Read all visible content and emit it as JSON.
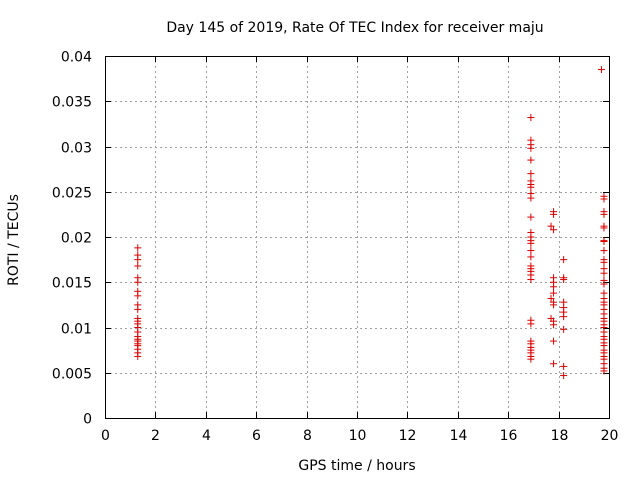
{
  "chart_data": {
    "type": "scatter",
    "title": "Day 145 of 2019, Rate Of TEC Index for receiver maju",
    "xlabel": "GPS time / hours",
    "ylabel": "ROTI / TECUs",
    "xlim": [
      0,
      20
    ],
    "ylim": [
      0,
      0.04
    ],
    "xticks": [
      0,
      2,
      4,
      6,
      8,
      10,
      12,
      14,
      16,
      18,
      20
    ],
    "yticks": [
      0,
      0.005,
      0.01,
      0.015,
      0.02,
      0.025,
      0.03,
      0.035,
      0.04
    ],
    "xtick_labels": [
      "0",
      "2",
      "4",
      "6",
      "8",
      "10",
      "12",
      "14",
      "16",
      "18",
      "20"
    ],
    "ytick_labels": [
      "0",
      "0.005",
      "0.01",
      "0.015",
      "0.02",
      "0.025",
      "0.03",
      "0.035",
      "0.04"
    ],
    "grid": true,
    "marker": "+",
    "color": "#dd0000",
    "series": [
      {
        "name": "ROTI",
        "points": [
          [
            1.3,
            0.0188
          ],
          [
            1.3,
            0.018
          ],
          [
            1.3,
            0.0175
          ],
          [
            1.3,
            0.0168
          ],
          [
            1.3,
            0.0155
          ],
          [
            1.3,
            0.015
          ],
          [
            1.3,
            0.014
          ],
          [
            1.3,
            0.0135
          ],
          [
            1.3,
            0.0125
          ],
          [
            1.3,
            0.012
          ],
          [
            1.3,
            0.011
          ],
          [
            1.3,
            0.0107
          ],
          [
            1.3,
            0.0104
          ],
          [
            1.3,
            0.01
          ],
          [
            1.3,
            0.0095
          ],
          [
            1.3,
            0.009
          ],
          [
            1.3,
            0.0087
          ],
          [
            1.3,
            0.0085
          ],
          [
            1.3,
            0.0082
          ],
          [
            1.3,
            0.008
          ],
          [
            1.3,
            0.0076
          ],
          [
            1.3,
            0.0072
          ],
          [
            1.3,
            0.0068
          ],
          [
            16.9,
            0.0332
          ],
          [
            16.9,
            0.0307
          ],
          [
            16.9,
            0.0302
          ],
          [
            16.9,
            0.0298
          ],
          [
            16.9,
            0.0285
          ],
          [
            16.9,
            0.027
          ],
          [
            16.9,
            0.0262
          ],
          [
            16.9,
            0.0258
          ],
          [
            16.9,
            0.0255
          ],
          [
            16.9,
            0.0248
          ],
          [
            16.9,
            0.0243
          ],
          [
            16.9,
            0.0222
          ],
          [
            16.9,
            0.0205
          ],
          [
            16.9,
            0.02
          ],
          [
            16.9,
            0.0196
          ],
          [
            16.9,
            0.0193
          ],
          [
            16.9,
            0.0185
          ],
          [
            16.9,
            0.0178
          ],
          [
            16.9,
            0.0168
          ],
          [
            16.9,
            0.0165
          ],
          [
            16.9,
            0.0162
          ],
          [
            16.9,
            0.0158
          ],
          [
            16.9,
            0.0153
          ],
          [
            16.9,
            0.0108
          ],
          [
            16.9,
            0.0104
          ],
          [
            16.9,
            0.0085
          ],
          [
            16.9,
            0.0082
          ],
          [
            16.9,
            0.0078
          ],
          [
            16.9,
            0.0075
          ],
          [
            16.9,
            0.0072
          ],
          [
            16.9,
            0.0068
          ],
          [
            16.9,
            0.0065
          ],
          [
            17.8,
            0.0228
          ],
          [
            17.8,
            0.0225
          ],
          [
            17.8,
            0.0208
          ],
          [
            17.7,
            0.0212
          ],
          [
            17.8,
            0.0155
          ],
          [
            17.8,
            0.015
          ],
          [
            17.8,
            0.0145
          ],
          [
            17.8,
            0.0138
          ],
          [
            17.7,
            0.0132
          ],
          [
            17.8,
            0.0128
          ],
          [
            17.8,
            0.0125
          ],
          [
            17.7,
            0.011
          ],
          [
            17.8,
            0.0107
          ],
          [
            17.8,
            0.0103
          ],
          [
            17.8,
            0.0085
          ],
          [
            17.8,
            0.006
          ],
          [
            18.2,
            0.0175
          ],
          [
            18.2,
            0.0155
          ],
          [
            18.2,
            0.0153
          ],
          [
            18.2,
            0.0128
          ],
          [
            18.2,
            0.0122
          ],
          [
            18.2,
            0.0117
          ],
          [
            18.2,
            0.0112
          ],
          [
            18.2,
            0.0098
          ],
          [
            18.2,
            0.0057
          ],
          [
            18.2,
            0.0047
          ],
          [
            19.7,
            0.0385
          ],
          [
            19.8,
            0.0245
          ],
          [
            19.8,
            0.0242
          ],
          [
            19.8,
            0.0228
          ],
          [
            19.8,
            0.0225
          ],
          [
            19.8,
            0.0212
          ],
          [
            19.8,
            0.021
          ],
          [
            19.8,
            0.0196
          ],
          [
            19.8,
            0.0195
          ],
          [
            19.8,
            0.0185
          ],
          [
            19.8,
            0.0175
          ],
          [
            19.8,
            0.0172
          ],
          [
            19.8,
            0.0165
          ],
          [
            19.8,
            0.016
          ],
          [
            19.8,
            0.0152
          ],
          [
            19.8,
            0.0148
          ],
          [
            19.8,
            0.0138
          ],
          [
            19.8,
            0.0132
          ],
          [
            19.8,
            0.0128
          ],
          [
            19.8,
            0.0125
          ],
          [
            19.8,
            0.012
          ],
          [
            19.8,
            0.0115
          ],
          [
            19.8,
            0.011
          ],
          [
            19.8,
            0.0107
          ],
          [
            19.8,
            0.0103
          ],
          [
            19.8,
            0.01
          ],
          [
            19.8,
            0.0095
          ],
          [
            19.8,
            0.009
          ],
          [
            19.8,
            0.0087
          ],
          [
            19.8,
            0.0083
          ],
          [
            19.8,
            0.008
          ],
          [
            19.8,
            0.0075
          ],
          [
            19.8,
            0.0072
          ],
          [
            19.8,
            0.0068
          ],
          [
            19.8,
            0.0065
          ],
          [
            19.8,
            0.006
          ],
          [
            19.8,
            0.0055
          ],
          [
            19.8,
            0.0052
          ]
        ]
      }
    ]
  }
}
